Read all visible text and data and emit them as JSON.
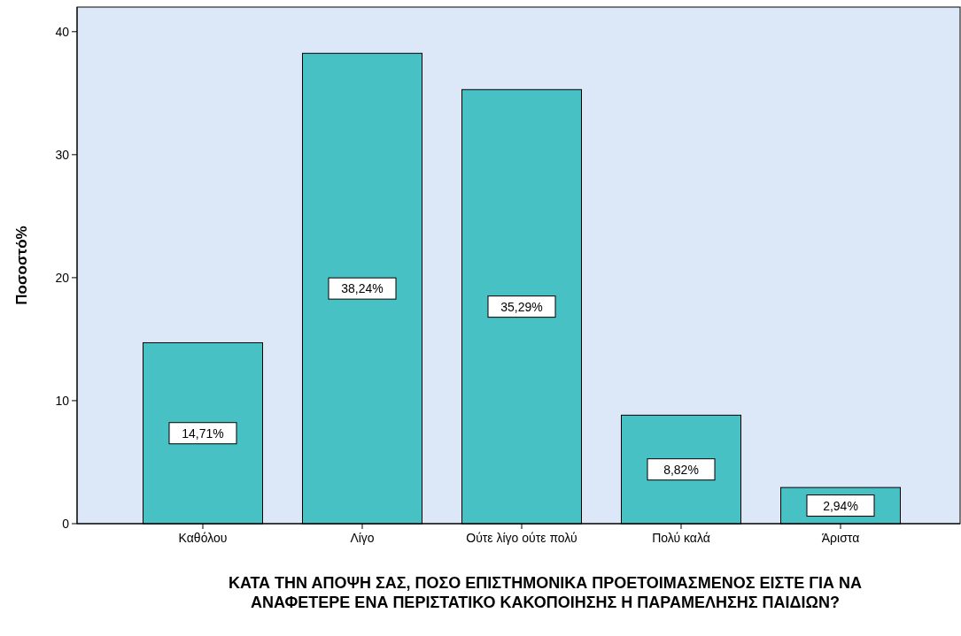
{
  "chart_data": {
    "type": "bar",
    "xlabel": "ΚΑΤΑ ΤΗΝ ΑΠΟΨΗ ΣΑΣ, ΠΟΣΟ ΕΠΙΣΤΗΜΟΝΙΚΑ ΠΡΟΕΤΟΙΜΑΣΜΕΝΟΣ ΕΙΣΤΕ ΓΙΑ ΝΑ ΑΝΑΦΕΤΕΡΕ ΕΝΑ ΠΕΡΙΣΤΑΤΙΚΟ ΚΑΚΟΠΟΙΗΣΗΣ Η ΠΑΡΑΜΕΛΗΣΗΣ ΠΑΙΔΙΩΝ?",
    "ylabel": "Ποσοστό%",
    "categories": [
      "Καθόλου",
      "Λίγο",
      "Ούτε λίγο ούτε πολύ",
      "Πολύ καλά",
      "Άριστα"
    ],
    "values": [
      14.71,
      38.24,
      35.29,
      8.82,
      2.94
    ],
    "value_labels": [
      "14,71%",
      "38,24%",
      "35,29%",
      "8,82%",
      "2,94%"
    ],
    "color": "#48c1c4",
    "ylim": [
      0,
      42
    ],
    "yticks": [
      0,
      10,
      20,
      30,
      40
    ],
    "grid": false
  }
}
